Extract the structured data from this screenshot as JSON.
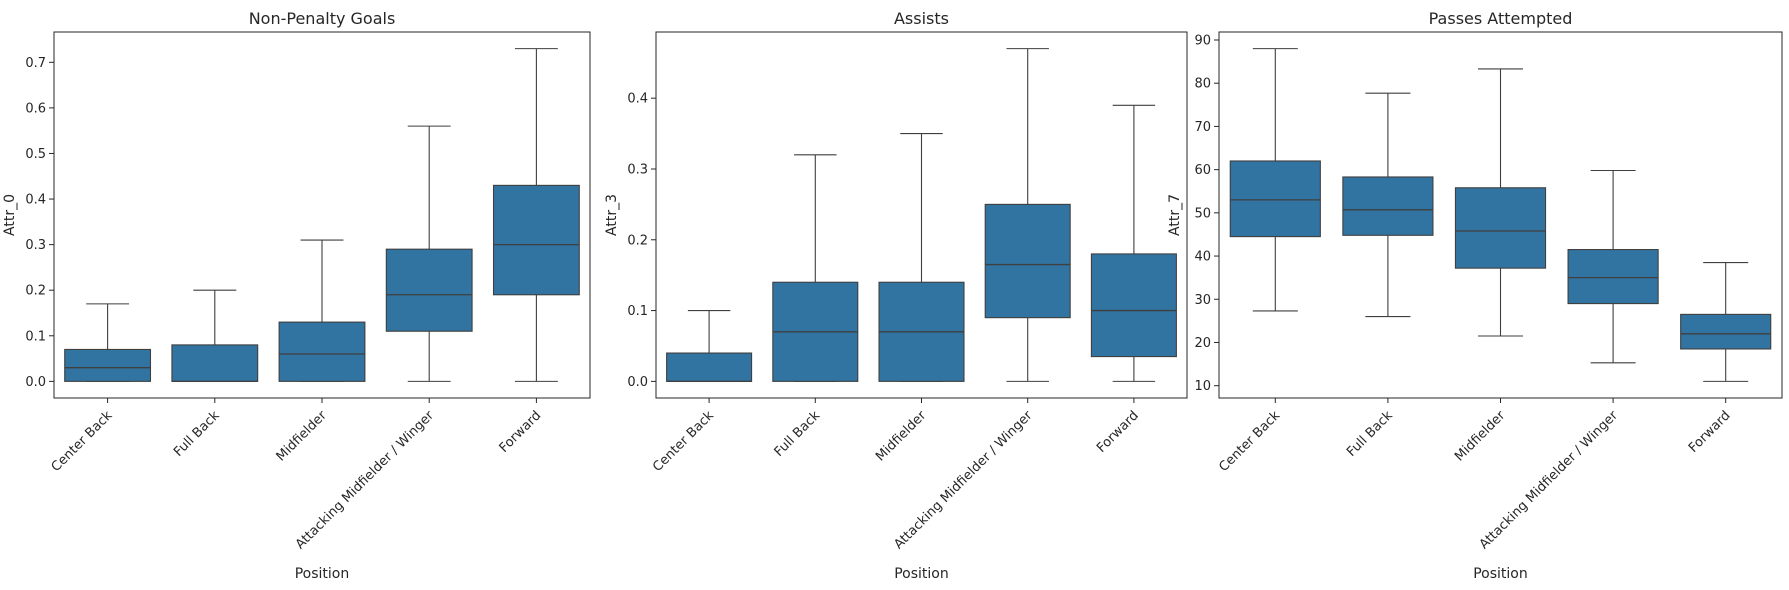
{
  "chart_data": [
    {
      "type": "box",
      "title": "Non-Penalty Goals",
      "xlabel": "Position",
      "ylabel": "Attr_0",
      "ylim": [
        -0.0365,
        0.7665
      ],
      "yticks": [
        0.0,
        0.1,
        0.2,
        0.3,
        0.4,
        0.5,
        0.6,
        0.7
      ],
      "categories": [
        "Center Back",
        "Full Back",
        "Midfielder",
        "Attacking Midfielder / Winger",
        "Forward"
      ],
      "boxes": [
        {
          "whisker_low": 0.0,
          "q1": 0.0,
          "median": 0.03,
          "q3": 0.07,
          "whisker_high": 0.17
        },
        {
          "whisker_low": 0.0,
          "q1": 0.0,
          "median": 0.0,
          "q3": 0.08,
          "whisker_high": 0.2
        },
        {
          "whisker_low": 0.0,
          "q1": 0.0,
          "median": 0.06,
          "q3": 0.13,
          "whisker_high": 0.31
        },
        {
          "whisker_low": 0.0,
          "q1": 0.11,
          "median": 0.19,
          "q3": 0.29,
          "whisker_high": 0.56
        },
        {
          "whisker_low": 0.0,
          "q1": 0.19,
          "median": 0.3,
          "q3": 0.43,
          "whisker_high": 0.73
        }
      ],
      "color": "#3274a1"
    },
    {
      "type": "box",
      "title": "Assists",
      "xlabel": "Position",
      "ylabel": "Attr_3",
      "ylim": [
        -0.0235,
        0.4935
      ],
      "yticks": [
        0.0,
        0.1,
        0.2,
        0.3,
        0.4
      ],
      "categories": [
        "Center Back",
        "Full Back",
        "Midfielder",
        "Attacking Midfielder / Winger",
        "Forward"
      ],
      "boxes": [
        {
          "whisker_low": 0.0,
          "q1": 0.0,
          "median": 0.0,
          "q3": 0.04,
          "whisker_high": 0.1
        },
        {
          "whisker_low": 0.0,
          "q1": 0.0,
          "median": 0.07,
          "q3": 0.14,
          "whisker_high": 0.32
        },
        {
          "whisker_low": 0.0,
          "q1": 0.0,
          "median": 0.07,
          "q3": 0.14,
          "whisker_high": 0.35
        },
        {
          "whisker_low": 0.0,
          "q1": 0.09,
          "median": 0.165,
          "q3": 0.25,
          "whisker_high": 0.47
        },
        {
          "whisker_low": 0.0,
          "q1": 0.035,
          "median": 0.1,
          "q3": 0.18,
          "whisker_high": 0.39
        }
      ],
      "color": "#3274a1"
    },
    {
      "type": "box",
      "title": "Passes Attempted",
      "xlabel": "Position",
      "ylabel": "Attr_7",
      "ylim": [
        7.15,
        91.85
      ],
      "yticks": [
        10,
        20,
        30,
        40,
        50,
        60,
        70,
        80,
        90
      ],
      "categories": [
        "Center Back",
        "Full Back",
        "Midfielder",
        "Attacking Midfielder / Winger",
        "Forward"
      ],
      "boxes": [
        {
          "whisker_low": 27.3,
          "q1": 44.5,
          "median": 53.0,
          "q3": 62.0,
          "whisker_high": 88.0
        },
        {
          "whisker_low": 26.0,
          "q1": 44.8,
          "median": 50.7,
          "q3": 58.3,
          "whisker_high": 77.7
        },
        {
          "whisker_low": 21.5,
          "q1": 37.2,
          "median": 45.8,
          "q3": 55.8,
          "whisker_high": 83.3
        },
        {
          "whisker_low": 15.3,
          "q1": 29.0,
          "median": 35.0,
          "q3": 41.5,
          "whisker_high": 59.8
        },
        {
          "whisker_low": 11.0,
          "q1": 18.5,
          "median": 22.0,
          "q3": 26.5,
          "whisker_high": 38.5
        }
      ],
      "color": "#3274a1"
    }
  ]
}
